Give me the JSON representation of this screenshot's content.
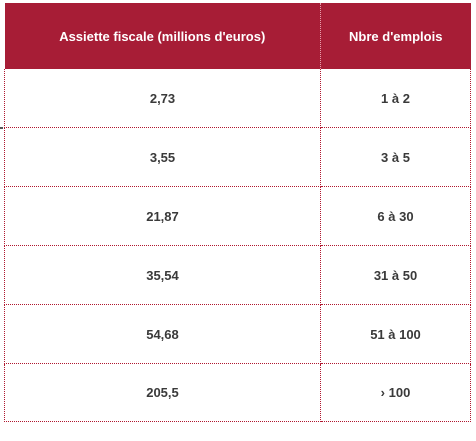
{
  "table": {
    "headers": [
      "Assiette fiscale (millions d'euros)",
      "Nbre d'emplois"
    ],
    "rows": [
      [
        "2,73",
        "1 à 2"
      ],
      [
        "3,55",
        "3 à 5"
      ],
      [
        "21,87",
        "6 à 30"
      ],
      [
        "35,54",
        "31 à 50"
      ],
      [
        "54,68",
        "51 à 100"
      ],
      [
        "205,5",
        "› 100"
      ]
    ]
  },
  "colors": {
    "header_background": "#a71d36",
    "header_text": "#ffffff",
    "border": "#b0172f",
    "cell_text": "#3a3a3a"
  }
}
